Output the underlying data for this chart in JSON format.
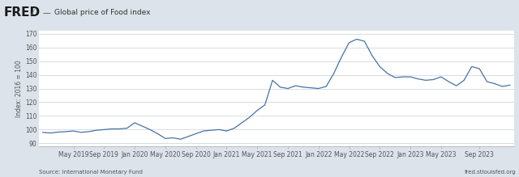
{
  "title": "Global price of Food index",
  "ylabel": "Index: 2016 = 100",
  "source_left": "Source: International Monetary Fund",
  "source_right": "fred.stlouisfed.org",
  "line_color": "#4572a7",
  "background_color": "#dce3ea",
  "plot_bg_color": "#ffffff",
  "grid_color": "#c8d0d8",
  "header_bg": "#dce3ea",
  "ylim": [
    88,
    172
  ],
  "yticks": [
    90,
    100,
    110,
    120,
    130,
    140,
    150,
    160,
    170
  ],
  "values": [
    98.0,
    97.5,
    98.2,
    98.5,
    99.0,
    98.0,
    98.5,
    99.5,
    100.0,
    100.5,
    100.5,
    101.0,
    105.0,
    102.5,
    100.0,
    97.0,
    93.5,
    94.0,
    93.0,
    95.0,
    97.0,
    99.0,
    99.5,
    100.0,
    99.0,
    101.0,
    105.0,
    109.0,
    114.0,
    118.0,
    136.0,
    131.0,
    130.0,
    132.0,
    131.0,
    130.5,
    130.0,
    131.5,
    141.0,
    153.0,
    163.5,
    166.0,
    164.5,
    154.0,
    146.0,
    141.0,
    138.0,
    138.5,
    138.5,
    137.0,
    136.0,
    136.5,
    138.5,
    135.0,
    132.0,
    136.0,
    146.0,
    144.5,
    135.0,
    133.5,
    131.5,
    132.5
  ],
  "xtick_labels": [
    "May 2019",
    "Sep 2019",
    "Jan 2020",
    "May 2020",
    "Sep 2020",
    "Jan 2021",
    "May 2021",
    "Sep 2021",
    "Jan 2022",
    "May 2022",
    "Sep 2022",
    "Jan 2023",
    "May 2023",
    "Sep 2023"
  ],
  "xtick_positions": [
    4,
    8,
    12,
    16,
    20,
    24,
    28,
    32,
    36,
    40,
    44,
    48,
    52,
    57
  ]
}
